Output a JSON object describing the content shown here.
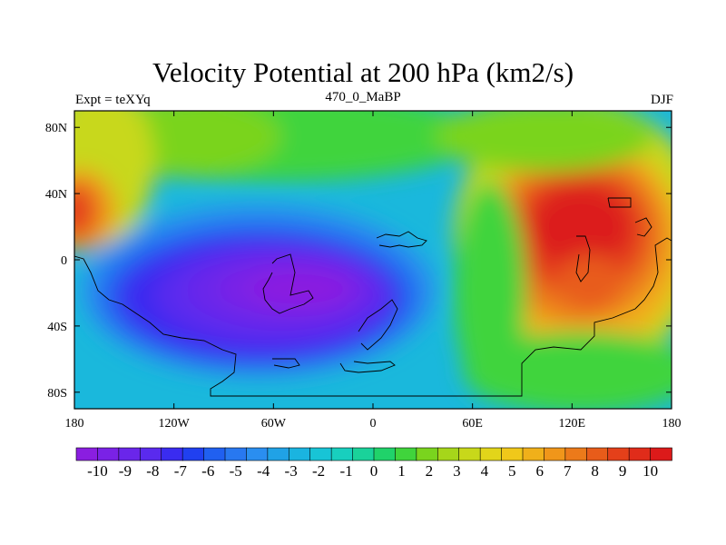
{
  "title": "Velocity Potential at 200 hPa (km2/s)",
  "left_label": "Expt = teXYq",
  "center_label": "470_0_MaBP",
  "right_label": "DJF",
  "x_ticks": [
    {
      "lon": -180,
      "label": "180"
    },
    {
      "lon": -120,
      "label": "120W"
    },
    {
      "lon": -60,
      "label": "60W"
    },
    {
      "lon": 0,
      "label": "0"
    },
    {
      "lon": 60,
      "label": "60E"
    },
    {
      "lon": 120,
      "label": "120E"
    },
    {
      "lon": 180,
      "label": "180"
    }
  ],
  "y_ticks": [
    {
      "lat": 80,
      "label": "80N"
    },
    {
      "lat": 40,
      "label": "40N"
    },
    {
      "lat": 0,
      "label": "0"
    },
    {
      "lat": -40,
      "label": "40S"
    },
    {
      "lat": -80,
      "label": "80S"
    }
  ],
  "colorbar": {
    "labels": [
      "-10",
      "-9",
      "-8",
      "-7",
      "-6",
      "-5",
      "-4",
      "-3",
      "-2",
      "-1",
      "0",
      "1",
      "2",
      "3",
      "4",
      "5",
      "6",
      "7",
      "8",
      "9",
      "10"
    ],
    "colors": [
      "#8a1ee0",
      "#7a22e6",
      "#6a26ea",
      "#5a2aee",
      "#3a2cf0",
      "#2040f0",
      "#2060f0",
      "#2878f0",
      "#2a8ef0",
      "#20a2e6",
      "#1ab4e0",
      "#18c4d6",
      "#18cfbe",
      "#1ad29a",
      "#20d26a",
      "#40d43c",
      "#7ad41e",
      "#a6d61a",
      "#c8d81a",
      "#e2d51a",
      "#f0c81a",
      "#f0b01a",
      "#f0961a",
      "#ec7a1a",
      "#e85c1a",
      "#e4401a",
      "#e02c1a",
      "#dc1a1a"
    ]
  },
  "field_data": {
    "variable": "Velocity Potential",
    "level_hpa": 200,
    "units": "km2/s",
    "season": "DJF",
    "experiment": "teXYq",
    "period": "470_0_MaBP",
    "lon_range": [
      -180,
      180
    ],
    "lat_range": [
      -90,
      90
    ],
    "centers": [
      {
        "lon": -45,
        "lat": -18,
        "value": -10.5
      },
      {
        "lon": 120,
        "lat": 22,
        "value": 9.5
      },
      {
        "lon": -178,
        "lat": 30,
        "value": 8.0
      },
      {
        "lon": 125,
        "lat": -15,
        "value": 8.5
      }
    ]
  }
}
